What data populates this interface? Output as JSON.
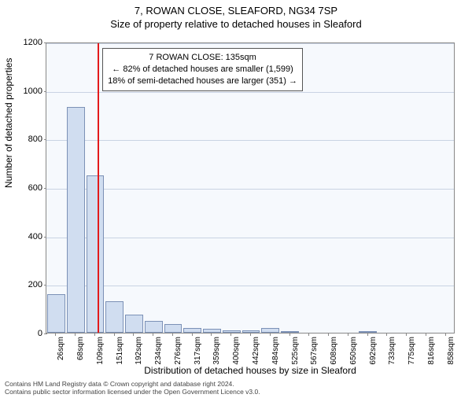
{
  "title_main": "7, ROWAN CLOSE, SLEAFORD, NG34 7SP",
  "title_sub": "Size of property relative to detached houses in Sleaford",
  "chart": {
    "type": "histogram",
    "plot_bg": "#f6f9fd",
    "border_color": "#888888",
    "grid_color": "#c9d3e3",
    "bar_fill": "#d0ddf0",
    "bar_stroke": "#7c91b6",
    "marker_color": "#e31a1c",
    "ylim": [
      0,
      1200
    ],
    "ytick_step": 200,
    "y_title": "Number of detached properties",
    "x_title": "Distribution of detached houses by size in Sleaford",
    "x_labels": [
      "26sqm",
      "68sqm",
      "109sqm",
      "151sqm",
      "192sqm",
      "234sqm",
      "276sqm",
      "317sqm",
      "359sqm",
      "400sqm",
      "442sqm",
      "484sqm",
      "525sqm",
      "567sqm",
      "608sqm",
      "650sqm",
      "692sqm",
      "733sqm",
      "775sqm",
      "816sqm",
      "858sqm"
    ],
    "bar_values": [
      160,
      930,
      650,
      130,
      75,
      50,
      35,
      20,
      15,
      10,
      10,
      18,
      5,
      0,
      0,
      0,
      3,
      0,
      0,
      0,
      0
    ],
    "marker_bin_index": 2,
    "marker_fraction_in_bin": 0.63,
    "annotation": {
      "line1": "7 ROWAN CLOSE: 135sqm",
      "line2": "← 82% of detached houses are smaller (1,599)",
      "line3": "18% of semi-detached houses are larger (351) →"
    }
  },
  "footer_line1": "Contains HM Land Registry data © Crown copyright and database right 2024.",
  "footer_line2": "Contains public sector information licensed under the Open Government Licence v3.0."
}
